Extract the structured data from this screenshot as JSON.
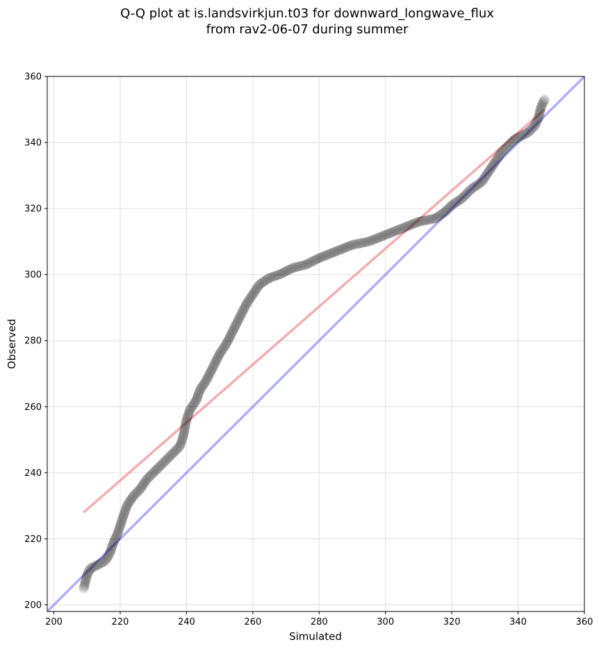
{
  "chart_data": {
    "type": "scatter",
    "title": "Q-Q plot at is.landsvirkjun.t03 for downward_longwave_flux",
    "subtitle": "from rav2-06-07 during summer",
    "xlabel": "Simulated",
    "ylabel": "Observed",
    "xlim": [
      198,
      360
    ],
    "ylim": [
      198,
      360
    ],
    "x_ticks": [
      200,
      220,
      240,
      260,
      280,
      300,
      320,
      340,
      360
    ],
    "y_ticks": [
      200,
      220,
      240,
      260,
      280,
      300,
      320,
      340,
      360
    ],
    "grid": true,
    "point_color": "#000000",
    "identity_line": {
      "color": "#7777ff",
      "from": [
        198,
        198
      ],
      "to": [
        360,
        360
      ]
    },
    "fit_line": {
      "color": "#f08080",
      "from": [
        209,
        228
      ],
      "to": [
        348,
        350
      ]
    },
    "quantile_curve": [
      [
        209,
        205
      ],
      [
        210,
        209
      ],
      [
        211,
        211
      ],
      [
        213,
        212
      ],
      [
        215,
        213
      ],
      [
        216,
        214
      ],
      [
        217,
        216
      ],
      [
        218,
        219
      ],
      [
        219,
        221
      ],
      [
        220,
        224
      ],
      [
        221,
        227
      ],
      [
        222,
        230
      ],
      [
        224,
        233
      ],
      [
        226,
        235
      ],
      [
        228,
        238
      ],
      [
        230,
        240
      ],
      [
        232,
        242
      ],
      [
        234,
        244
      ],
      [
        236,
        246
      ],
      [
        238,
        248
      ],
      [
        239,
        251
      ],
      [
        240,
        256
      ],
      [
        241,
        259
      ],
      [
        243,
        262
      ],
      [
        244,
        265
      ],
      [
        246,
        268
      ],
      [
        248,
        272
      ],
      [
        250,
        276
      ],
      [
        252,
        279
      ],
      [
        254,
        283
      ],
      [
        256,
        287
      ],
      [
        258,
        291
      ],
      [
        260,
        294
      ],
      [
        262,
        297
      ],
      [
        265,
        299
      ],
      [
        268,
        300
      ],
      [
        272,
        302
      ],
      [
        276,
        303
      ],
      [
        280,
        305
      ],
      [
        285,
        307
      ],
      [
        290,
        309
      ],
      [
        295,
        310
      ],
      [
        300,
        312
      ],
      [
        305,
        314
      ],
      [
        310,
        316
      ],
      [
        315,
        317
      ],
      [
        318,
        319
      ],
      [
        320,
        321
      ],
      [
        323,
        323
      ],
      [
        326,
        326
      ],
      [
        329,
        328
      ],
      [
        331,
        331
      ],
      [
        333,
        334
      ],
      [
        335,
        337
      ],
      [
        337,
        339
      ],
      [
        339,
        341
      ],
      [
        341,
        342
      ],
      [
        343,
        343
      ],
      [
        345,
        345
      ],
      [
        346,
        347
      ],
      [
        347,
        351
      ],
      [
        348,
        353
      ]
    ]
  }
}
